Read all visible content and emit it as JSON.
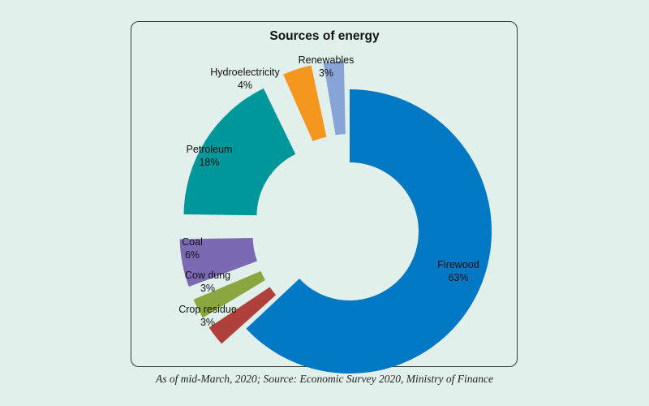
{
  "chart_data": {
    "type": "pie",
    "variant": "exploded-donut",
    "title": "Sources of energy",
    "legend": "none",
    "slices": [
      {
        "label": "Firewood",
        "value": 63,
        "display": "63%",
        "color": "#0078c3"
      },
      {
        "label": "Crop residue",
        "value": 3,
        "display": "3%",
        "color": "#b0403c"
      },
      {
        "label": "Cow dung",
        "value": 3,
        "display": "3%",
        "color": "#8aa63f"
      },
      {
        "label": "Coal",
        "value": 6,
        "display": "6%",
        "color": "#7b6ab3"
      },
      {
        "label": "Petroleum",
        "value": 18,
        "display": "18%",
        "color": "#00979a"
      },
      {
        "label": "Hydroelectricity",
        "value": 4,
        "display": "4%",
        "color": "#f5961e"
      },
      {
        "label": "Renewables",
        "value": 3,
        "display": "3%",
        "color": "#88a4d6"
      }
    ]
  },
  "footer": {
    "source": "As of mid-March, 2020; Source: Economic Survey 2020, Ministry of Finance"
  }
}
